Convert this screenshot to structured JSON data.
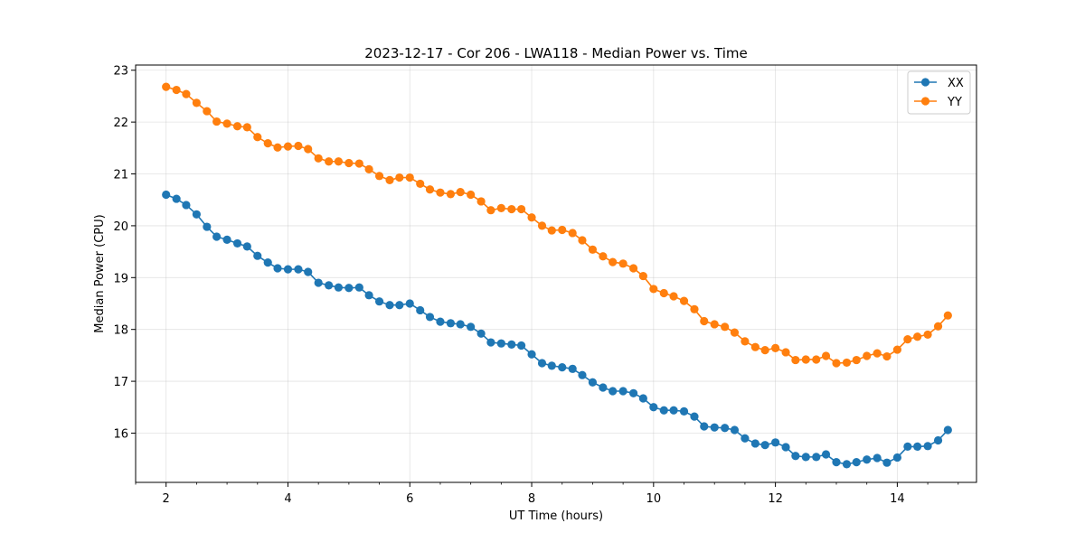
{
  "chart_data": {
    "type": "line",
    "title": "2023-12-17 - Cor 206 - LWA118 - Median Power vs. Time",
    "xlabel": "UT Time (hours)",
    "ylabel": "Median Power (CPU)",
    "xlim": [
      1.5,
      15.3
    ],
    "ylim": [
      15.05,
      23.1
    ],
    "xticks": [
      2,
      4,
      6,
      8,
      10,
      12,
      14
    ],
    "yticks": [
      16,
      17,
      18,
      19,
      20,
      21,
      22,
      23
    ],
    "grid": true,
    "legend_position": "top-right",
    "colors": {
      "XX": "#1f77b4",
      "YY": "#ff7f0e"
    },
    "x": [
      2.0,
      2.17,
      2.33,
      2.5,
      2.67,
      2.83,
      3.0,
      3.17,
      3.33,
      3.5,
      3.67,
      3.83,
      4.0,
      4.17,
      4.33,
      4.5,
      4.67,
      4.83,
      5.0,
      5.17,
      5.33,
      5.5,
      5.67,
      5.83,
      6.0,
      6.17,
      6.33,
      6.5,
      6.67,
      6.83,
      7.0,
      7.17,
      7.33,
      7.5,
      7.67,
      7.83,
      8.0,
      8.17,
      8.33,
      8.5,
      8.67,
      8.83,
      9.0,
      9.17,
      9.33,
      9.5,
      9.67,
      9.83,
      10.0,
      10.17,
      10.33,
      10.5,
      10.67,
      10.83,
      11.0,
      11.17,
      11.33,
      11.5,
      11.67,
      11.83,
      12.0,
      12.17,
      12.33,
      12.5,
      12.67,
      12.83,
      13.0,
      13.17,
      13.33,
      13.5,
      13.67,
      13.83,
      14.0,
      14.17,
      14.33,
      14.5,
      14.67,
      14.83
    ],
    "series": [
      {
        "name": "XX",
        "values": [
          20.6,
          20.52,
          20.4,
          20.22,
          19.98,
          19.79,
          19.73,
          19.66,
          19.6,
          19.42,
          19.29,
          19.18,
          19.16,
          19.16,
          19.11,
          18.9,
          18.85,
          18.81,
          18.8,
          18.81,
          18.66,
          18.54,
          18.47,
          18.47,
          18.5,
          18.37,
          18.24,
          18.15,
          18.12,
          18.1,
          18.05,
          17.92,
          17.75,
          17.73,
          17.71,
          17.69,
          17.52,
          17.35,
          17.3,
          17.27,
          17.24,
          17.12,
          16.98,
          16.88,
          16.81,
          16.81,
          16.77,
          16.67,
          16.5,
          16.44,
          16.44,
          16.42,
          16.32,
          16.13,
          16.11,
          16.1,
          16.06,
          15.9,
          15.8,
          15.77,
          15.82,
          15.73,
          15.56,
          15.54,
          15.54,
          15.59,
          15.44,
          15.4,
          15.44,
          15.49,
          15.52,
          15.43,
          15.53,
          15.74,
          15.74,
          15.75,
          15.86,
          16.06
        ]
      },
      {
        "name": "YY",
        "values": [
          22.68,
          22.62,
          22.54,
          22.37,
          22.21,
          22.01,
          21.97,
          21.92,
          21.9,
          21.71,
          21.59,
          21.51,
          21.53,
          21.54,
          21.48,
          21.3,
          21.24,
          21.24,
          21.21,
          21.2,
          21.09,
          20.96,
          20.88,
          20.93,
          20.93,
          20.81,
          20.7,
          20.64,
          20.61,
          20.65,
          20.6,
          20.47,
          20.3,
          20.34,
          20.32,
          20.32,
          20.16,
          20.0,
          19.91,
          19.92,
          19.86,
          19.72,
          19.54,
          19.41,
          19.3,
          19.27,
          19.18,
          19.03,
          18.78,
          18.7,
          18.64,
          18.55,
          18.39,
          18.16,
          18.1,
          18.05,
          17.94,
          17.77,
          17.66,
          17.6,
          17.64,
          17.56,
          17.41,
          17.42,
          17.42,
          17.49,
          17.35,
          17.36,
          17.41,
          17.49,
          17.54,
          17.48,
          17.61,
          17.81,
          17.86,
          17.9,
          18.06,
          18.27
        ]
      }
    ]
  }
}
